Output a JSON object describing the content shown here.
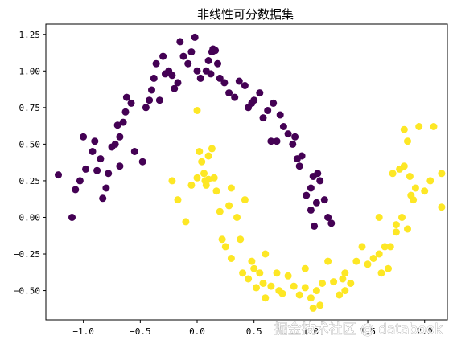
{
  "chart_data": {
    "type": "scatter",
    "title": "非线性可分数据集",
    "xlabel": "",
    "ylabel": "",
    "xlim": [
      -1.33,
      2.2
    ],
    "ylim": [
      -0.7,
      1.32
    ],
    "xticks": [
      -1.0,
      -0.5,
      0.0,
      0.5,
      1.0,
      1.5,
      2.0
    ],
    "yticks": [
      -0.5,
      -0.25,
      0.0,
      0.25,
      0.5,
      0.75,
      1.0,
      1.25
    ],
    "xtick_labels": [
      "−1.0",
      "−0.5",
      "0.0",
      "0.5",
      "1.0",
      "1.5",
      "2.0"
    ],
    "ytick_labels": [
      "−0.50",
      "−0.25",
      "0.00",
      "0.25",
      "0.50",
      "0.75",
      "1.00",
      "1.25"
    ],
    "grid": false,
    "series": [
      {
        "color": "#440154",
        "points": [
          [
            -1.22,
            0.29
          ],
          [
            -1.1,
            0.0
          ],
          [
            -1.07,
            0.19
          ],
          [
            -1.03,
            0.25
          ],
          [
            -0.98,
            0.33
          ],
          [
            -0.92,
            0.45
          ],
          [
            -0.9,
            0.52
          ],
          [
            -0.88,
            0.32
          ],
          [
            -0.85,
            0.4
          ],
          [
            -0.83,
            0.13
          ],
          [
            -0.8,
            0.2
          ],
          [
            -0.78,
            0.3
          ],
          [
            -0.75,
            0.48
          ],
          [
            -0.72,
            0.5
          ],
          [
            -0.7,
            0.63
          ],
          [
            -0.68,
            0.55
          ],
          [
            -0.65,
            0.65
          ],
          [
            -0.63,
            0.72
          ],
          [
            -0.62,
            0.82
          ],
          [
            -0.58,
            0.78
          ],
          [
            -0.55,
            0.45
          ],
          [
            -0.48,
            0.38
          ],
          [
            -0.45,
            0.75
          ],
          [
            -0.42,
            0.8
          ],
          [
            -0.4,
            0.87
          ],
          [
            -0.38,
            0.95
          ],
          [
            -0.36,
            1.05
          ],
          [
            -0.33,
            0.8
          ],
          [
            -0.3,
            1.1
          ],
          [
            -0.28,
            0.98
          ],
          [
            -0.25,
            1.0
          ],
          [
            -0.22,
            0.97
          ],
          [
            -0.2,
            0.88
          ],
          [
            -0.17,
            0.92
          ],
          [
            -0.15,
            1.2
          ],
          [
            -0.12,
            1.1
          ],
          [
            -0.08,
            1.05
          ],
          [
            -0.05,
            1.13
          ],
          [
            -0.02,
            1.23
          ],
          [
            0.0,
            1.0
          ],
          [
            0.03,
            0.95
          ],
          [
            0.08,
            1.0
          ],
          [
            0.1,
            1.07
          ],
          [
            0.12,
            0.98
          ],
          [
            0.13,
            1.13
          ],
          [
            0.14,
            1.15
          ],
          [
            0.16,
            1.14
          ],
          [
            0.18,
            1.05
          ],
          [
            0.2,
            0.95
          ],
          [
            0.24,
            0.92
          ],
          [
            0.28,
            0.85
          ],
          [
            0.33,
            0.82
          ],
          [
            0.37,
            0.93
          ],
          [
            0.42,
            0.9
          ],
          [
            0.48,
            0.78
          ],
          [
            0.5,
            0.8
          ],
          [
            0.55,
            0.85
          ],
          [
            0.58,
            0.68
          ],
          [
            0.62,
            0.73
          ],
          [
            0.67,
            0.78
          ],
          [
            0.7,
            0.52
          ],
          [
            0.73,
            0.7
          ],
          [
            0.76,
            0.62
          ],
          [
            0.8,
            0.57
          ],
          [
            0.84,
            0.5
          ],
          [
            0.86,
            0.55
          ],
          [
            0.88,
            0.4
          ],
          [
            0.9,
            0.35
          ],
          [
            0.92,
            0.42
          ],
          [
            0.96,
            0.15
          ],
          [
            1.0,
            0.2
          ],
          [
            1.02,
            0.28
          ],
          [
            1.05,
            0.1
          ],
          [
            1.03,
            -0.06
          ],
          [
            1.06,
            0.3
          ],
          [
            1.08,
            0.25
          ],
          [
            1.12,
            0.12
          ],
          [
            1.15,
            0.0
          ],
          [
            1.18,
            -0.04
          ],
          [
            1.0,
            0.05
          ],
          [
            0.65,
            0.52
          ],
          [
            0.45,
            0.75
          ],
          [
            -0.68,
            0.35
          ],
          [
            -1.0,
            0.55
          ]
        ]
      },
      {
        "color": "#fde725",
        "points": [
          [
            -0.22,
            0.25
          ],
          [
            -0.17,
            0.12
          ],
          [
            -0.1,
            -0.03
          ],
          [
            -0.05,
            0.22
          ],
          [
            0.0,
            0.27
          ],
          [
            0.0,
            0.73
          ],
          [
            0.02,
            0.45
          ],
          [
            0.04,
            0.38
          ],
          [
            0.06,
            0.3
          ],
          [
            0.07,
            0.25
          ],
          [
            0.08,
            0.22
          ],
          [
            0.1,
            0.26
          ],
          [
            0.1,
            0.42
          ],
          [
            0.13,
            0.47
          ],
          [
            0.15,
            0.27
          ],
          [
            0.17,
            0.18
          ],
          [
            0.2,
            0.04
          ],
          [
            0.22,
            -0.15
          ],
          [
            0.25,
            -0.2
          ],
          [
            0.28,
            0.08
          ],
          [
            0.3,
            -0.28
          ],
          [
            0.35,
            0.0
          ],
          [
            0.38,
            -0.15
          ],
          [
            0.4,
            -0.38
          ],
          [
            0.42,
            0.12
          ],
          [
            0.45,
            -0.42
          ],
          [
            0.48,
            -0.3
          ],
          [
            0.5,
            -0.35
          ],
          [
            0.52,
            -0.48
          ],
          [
            0.55,
            -0.38
          ],
          [
            0.58,
            -0.45
          ],
          [
            0.6,
            -0.55
          ],
          [
            0.65,
            -0.47
          ],
          [
            0.7,
            -0.38
          ],
          [
            0.72,
            -0.5
          ],
          [
            0.75,
            -0.52
          ],
          [
            0.8,
            -0.4
          ],
          [
            0.85,
            -0.47
          ],
          [
            0.9,
            -0.53
          ],
          [
            0.95,
            -0.48
          ],
          [
            1.0,
            -0.55
          ],
          [
            1.02,
            -0.62
          ],
          [
            1.05,
            -0.5
          ],
          [
            1.08,
            -0.6
          ],
          [
            1.1,
            -0.45
          ],
          [
            1.15,
            -0.3
          ],
          [
            1.2,
            -0.44
          ],
          [
            1.25,
            -0.53
          ],
          [
            1.28,
            -0.42
          ],
          [
            1.3,
            -0.38
          ],
          [
            1.35,
            -0.45
          ],
          [
            1.4,
            -0.3
          ],
          [
            1.45,
            -0.2
          ],
          [
            1.5,
            -0.32
          ],
          [
            1.55,
            -0.28
          ],
          [
            1.6,
            -0.25
          ],
          [
            1.62,
            -0.38
          ],
          [
            1.65,
            -0.2
          ],
          [
            1.68,
            -0.35
          ],
          [
            1.7,
            -0.2
          ],
          [
            1.72,
            0.3
          ],
          [
            1.75,
            -0.1
          ],
          [
            1.78,
            0.33
          ],
          [
            1.8,
            0.0
          ],
          [
            1.82,
            0.35
          ],
          [
            1.85,
            -0.08
          ],
          [
            1.85,
            0.52
          ],
          [
            1.87,
            0.28
          ],
          [
            1.88,
            0.15
          ],
          [
            1.9,
            0.12
          ],
          [
            1.92,
            0.2
          ],
          [
            1.95,
            0.62
          ],
          [
            2.0,
            0.18
          ],
          [
            2.05,
            0.25
          ],
          [
            2.08,
            0.62
          ],
          [
            2.15,
            0.3
          ],
          [
            2.15,
            0.07
          ],
          [
            1.82,
            0.6
          ],
          [
            1.6,
            0.0
          ],
          [
            0.95,
            -0.35
          ],
          [
            0.6,
            -0.25
          ],
          [
            0.3,
            0.2
          ],
          [
            1.3,
            -0.5
          ],
          [
            1.75,
            -0.05
          ]
        ]
      }
    ],
    "watermark": "掘金技术社区 @ databook"
  }
}
